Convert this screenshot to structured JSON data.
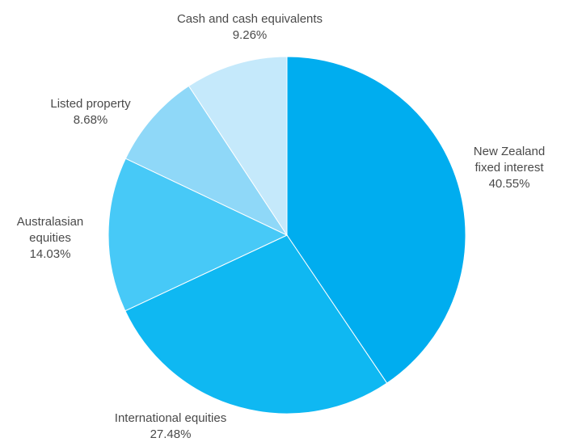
{
  "chart_data": {
    "type": "pie",
    "series": [
      {
        "slices": [
          {
            "label": [
              "New Zealand",
              "fixed interest"
            ],
            "value": 40.55,
            "display": "40.55%",
            "color": "#00adef"
          },
          {
            "label": [
              "International equities"
            ],
            "value": 27.48,
            "display": "27.48%",
            "color": "#0fb8f2"
          },
          {
            "label": [
              "Australasian",
              "equities"
            ],
            "value": 14.03,
            "display": "14.03%",
            "color": "#47c9f7"
          },
          {
            "label": [
              "Listed property"
            ],
            "value": 8.68,
            "display": "8.68%",
            "color": "#8fd8f8"
          },
          {
            "label": [
              "Cash and cash equivalents"
            ],
            "value": 9.26,
            "display": "9.26%",
            "color": "#c5e9fb"
          }
        ]
      }
    ],
    "start_angle": "12 o'clock",
    "direction": "clockwise",
    "legend": "none"
  }
}
